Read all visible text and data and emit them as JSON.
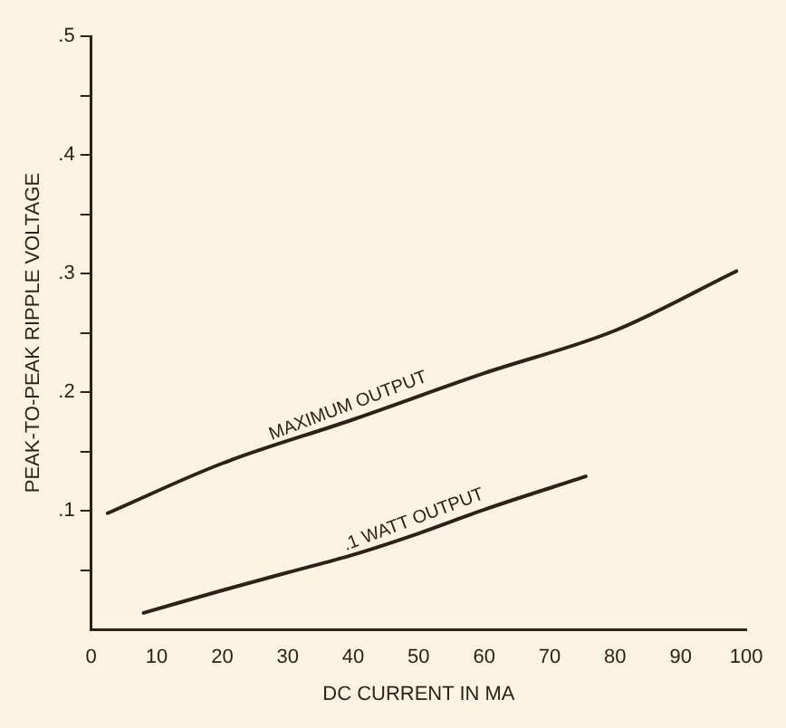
{
  "chart_data": {
    "type": "line",
    "xlabel": "DC CURRENT IN MA",
    "ylabel": "PEAK-TO-PEAK RIPPLE VOLTAGE",
    "series": [
      {
        "color": "#2e2218",
        "x": [
          2.5,
          20,
          40,
          60,
          80,
          98.5
        ],
        "values": [
          0.098,
          0.14,
          0.177,
          0.216,
          0.252,
          0.302
        ]
      },
      {
        "color": "#2e2218",
        "x": [
          8,
          20,
          30,
          40,
          50,
          60,
          75.5
        ],
        "values": [
          0.014,
          0.033,
          0.048,
          0.063,
          0.081,
          0.101,
          0.129
        ]
      }
    ],
    "xlim": [
      0,
      100
    ],
    "xticks": [
      0,
      10,
      20,
      30,
      40,
      50,
      60,
      70,
      80,
      90,
      100
    ],
    "ylim": [
      0,
      0.5
    ],
    "yticks": [
      {
        "value": 0.05,
        "label": null
      },
      {
        "value": 0.1,
        "label": ".1"
      },
      {
        "value": 0.15,
        "label": null
      },
      {
        "value": 0.2,
        "label": ".2"
      },
      {
        "value": 0.25,
        "label": null
      },
      {
        "value": 0.3,
        "label": ".3"
      },
      {
        "value": 0.35,
        "label": null
      },
      {
        "value": 0.4,
        "label": ".4"
      },
      {
        "value": 0.45,
        "label": null
      },
      {
        "value": 0.5,
        "label": ".5"
      }
    ],
    "annotations": [
      {
        "text": "MAXIMUM OUTPUT",
        "x": 40,
        "y": 0.177
      },
      {
        "text": ".1 WATT OUTPUT",
        "x": 50,
        "y": 0.081
      }
    ],
    "grid": false,
    "legend": false,
    "marker": "none",
    "line_style": "solid"
  }
}
